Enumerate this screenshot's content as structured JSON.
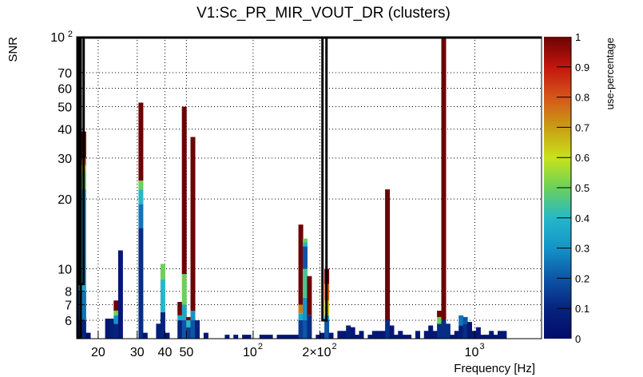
{
  "chart_data": {
    "type": "heatmap",
    "title": "V1:Sc_PR_MIR_VOUT_DR (clusters)",
    "xlabel": "Frequency [Hz]",
    "ylabel": "SNR",
    "zlabel": "use-percentage",
    "x_scale": "log",
    "y_scale": "log",
    "xlim": [
      16,
      2000
    ],
    "ylim": [
      5,
      100
    ],
    "zlim": [
      0,
      1
    ],
    "grid": true,
    "x_ticks": [
      {
        "value": 20,
        "label": "20"
      },
      {
        "value": 30,
        "label": "30"
      },
      {
        "value": 40,
        "label": "40"
      },
      {
        "value": 50,
        "label": "50"
      },
      {
        "value": 100,
        "label": "10",
        "exp": "2"
      },
      {
        "value": 200,
        "label": "2×10",
        "exp": "2"
      },
      {
        "value": 1000,
        "label": "10",
        "exp": "3"
      }
    ],
    "y_ticks": [
      {
        "value": 6,
        "label": "6"
      },
      {
        "value": 7,
        "label": "7"
      },
      {
        "value": 8,
        "label": "8"
      },
      {
        "value": 10,
        "label": "10"
      },
      {
        "value": 20,
        "label": "20"
      },
      {
        "value": 30,
        "label": "30"
      },
      {
        "value": 40,
        "label": "40"
      },
      {
        "value": 50,
        "label": "50"
      },
      {
        "value": 60,
        "label": "60"
      },
      {
        "value": 70,
        "label": "70"
      },
      {
        "value": 100,
        "label": "10",
        "exp": "2"
      }
    ],
    "z_ticks": [
      "0",
      "0.1",
      "0.2",
      "0.3",
      "0.4",
      "0.5",
      "0.6",
      "0.7",
      "0.8",
      "0.9",
      "1"
    ],
    "columns": [
      {
        "f": 16.1,
        "segments": [
          [
            5,
            6,
            0.05
          ],
          [
            6,
            8,
            0.15
          ],
          [
            8,
            10,
            0.3
          ],
          [
            10,
            12,
            0.45
          ],
          [
            12,
            20,
            0.3
          ],
          [
            20,
            32,
            0.25
          ]
        ]
      },
      {
        "f": 16.8,
        "segments": [
          [
            5,
            6,
            0.1
          ],
          [
            6,
            8,
            0.25
          ],
          [
            8,
            22,
            0.35
          ],
          [
            22,
            26,
            0.5
          ],
          [
            26,
            28,
            0.65
          ],
          [
            28,
            30,
            0.8
          ],
          [
            30,
            39,
            1.0
          ]
        ]
      },
      {
        "f": 17.6,
        "segments": [
          [
            5,
            5.3,
            0.02
          ]
        ]
      },
      {
        "f": 21.5,
        "segments": [
          [
            5,
            6.1,
            0.05
          ]
        ]
      },
      {
        "f": 22.5,
        "segments": [
          [
            5,
            6.1,
            0.08
          ]
        ]
      },
      {
        "f": 23.5,
        "segments": [
          [
            5,
            5.8,
            0.1
          ],
          [
            5.8,
            6.3,
            0.3
          ],
          [
            6.3,
            6.6,
            0.5
          ],
          [
            6.6,
            7.3,
            1.0
          ]
        ]
      },
      {
        "f": 24.6,
        "segments": [
          [
            5,
            12,
            0.05
          ]
        ]
      },
      {
        "f": 30.4,
        "segments": [
          [
            5,
            15,
            0.12
          ],
          [
            15,
            19,
            0.25
          ],
          [
            19,
            22,
            0.4
          ],
          [
            22,
            24,
            0.5
          ],
          [
            24,
            52,
            1.0
          ]
        ]
      },
      {
        "f": 31.8,
        "segments": [
          [
            5,
            5.3,
            0.05
          ]
        ]
      },
      {
        "f": 36.5,
        "segments": [
          [
            5,
            5.8,
            0.08
          ]
        ]
      },
      {
        "f": 38.2,
        "segments": [
          [
            5,
            6.5,
            0.1
          ],
          [
            6.5,
            9,
            0.4
          ],
          [
            9,
            10.5,
            0.5
          ]
        ]
      },
      {
        "f": 40.0,
        "segments": [
          [
            5,
            5.3,
            0.05
          ]
        ]
      },
      {
        "f": 45.6,
        "segments": [
          [
            5,
            6,
            0.1
          ],
          [
            6,
            6.3,
            0.35
          ],
          [
            6.3,
            7.2,
            1.0
          ]
        ]
      },
      {
        "f": 47.7,
        "segments": [
          [
            5,
            6,
            0.2
          ],
          [
            6,
            7,
            0.35
          ],
          [
            7,
            9.5,
            0.5
          ],
          [
            9.5,
            50,
            1.0
          ]
        ]
      },
      {
        "f": 49.9,
        "segments": [
          [
            5,
            5.6,
            0.15
          ],
          [
            5.6,
            6,
            0.4
          ],
          [
            6,
            6.2,
            1.0
          ]
        ]
      },
      {
        "f": 52.2,
        "segments": [
          [
            5,
            6,
            0.2
          ],
          [
            6,
            6.6,
            0.3
          ],
          [
            6.6,
            37,
            1.0
          ]
        ]
      },
      {
        "f": 54.6,
        "segments": [
          [
            5,
            6,
            0.1
          ]
        ]
      },
      {
        "f": 59.8,
        "segments": [
          [
            5,
            5.3,
            0.05
          ]
        ]
      },
      {
        "f": 74.5,
        "segments": [
          [
            5,
            5.2,
            0.05
          ]
        ]
      },
      {
        "f": 81.5,
        "segments": [
          [
            5,
            5.2,
            0.05
          ]
        ]
      },
      {
        "f": 89.2,
        "segments": [
          [
            5,
            5.2,
            0.05
          ]
        ]
      },
      {
        "f": 93.3,
        "segments": [
          [
            5,
            5.2,
            0.05
          ]
        ]
      },
      {
        "f": 106.8,
        "segments": [
          [
            5,
            5.2,
            0.05
          ]
        ]
      },
      {
        "f": 111.7,
        "segments": [
          [
            5,
            5.2,
            0.05
          ]
        ]
      },
      {
        "f": 116.8,
        "segments": [
          [
            5,
            5.2,
            0.05
          ]
        ]
      },
      {
        "f": 127.8,
        "segments": [
          [
            5,
            5.2,
            0.05
          ]
        ]
      },
      {
        "f": 133.7,
        "segments": [
          [
            5,
            5.2,
            0.05
          ]
        ]
      },
      {
        "f": 139.8,
        "segments": [
          [
            5,
            5.2,
            0.05
          ]
        ]
      },
      {
        "f": 146.2,
        "segments": [
          [
            5,
            5.2,
            0.05
          ]
        ]
      },
      {
        "f": 153.0,
        "segments": [
          [
            5,
            5.2,
            0.05
          ]
        ]
      },
      {
        "f": 160.0,
        "segments": [
          [
            5,
            6,
            0.15
          ],
          [
            6,
            6.4,
            0.35
          ],
          [
            6.4,
            7,
            0.75
          ],
          [
            7,
            15.5,
            1.0
          ]
        ]
      },
      {
        "f": 167.4,
        "segments": [
          [
            5,
            6,
            0.2
          ],
          [
            6,
            7.5,
            0.3
          ],
          [
            7.5,
            10,
            0.45
          ],
          [
            10,
            12.5,
            0.2
          ],
          [
            12.5,
            13,
            0.4
          ],
          [
            13,
            13.5,
            0.5
          ]
        ]
      },
      {
        "f": 175.1,
        "segments": [
          [
            5,
            6.3,
            0.12
          ],
          [
            6.3,
            9.3,
            1.0
          ]
        ]
      },
      {
        "f": 191.6,
        "segments": [
          [
            5,
            5.2,
            0.05
          ]
        ]
      },
      {
        "f": 200.4,
        "segments": [
          [
            5,
            5.3,
            0.05
          ]
        ]
      },
      {
        "f": 209.6,
        "segments": [
          [
            5,
            6,
            0.2
          ],
          [
            6,
            6.3,
            0.35
          ],
          [
            6.3,
            7.3,
            0.65
          ],
          [
            7.3,
            8.6,
            0.8
          ],
          [
            8.6,
            10,
            1.0
          ]
        ]
      },
      {
        "f": 219.2,
        "segments": [
          [
            5,
            5.3,
            0.05
          ]
        ]
      },
      {
        "f": 239.9,
        "segments": [
          [
            5,
            5.4,
            0.05
          ]
        ]
      },
      {
        "f": 250.9,
        "segments": [
          [
            5,
            5.4,
            0.05
          ]
        ]
      },
      {
        "f": 262.5,
        "segments": [
          [
            5,
            5.7,
            0.08
          ]
        ]
      },
      {
        "f": 274.6,
        "segments": [
          [
            5,
            5.6,
            0.05
          ]
        ]
      },
      {
        "f": 287.2,
        "segments": [
          [
            5,
            5.2,
            0.05
          ]
        ]
      },
      {
        "f": 300.4,
        "segments": [
          [
            5,
            5.4,
            0.05
          ]
        ]
      },
      {
        "f": 328.8,
        "segments": [
          [
            5,
            5.2,
            0.05
          ]
        ]
      },
      {
        "f": 343.9,
        "segments": [
          [
            5,
            5.4,
            0.05
          ]
        ]
      },
      {
        "f": 359.8,
        "segments": [
          [
            5,
            5.4,
            0.05
          ]
        ]
      },
      {
        "f": 376.3,
        "segments": [
          [
            5,
            5.4,
            0.05
          ]
        ]
      },
      {
        "f": 393.6,
        "segments": [
          [
            5,
            6,
            0.12
          ],
          [
            6,
            22,
            1.0
          ]
        ]
      },
      {
        "f": 411.7,
        "segments": [
          [
            5,
            5.7,
            0.05
          ]
        ]
      },
      {
        "f": 430.6,
        "segments": [
          [
            5,
            5.2,
            0.05
          ]
        ]
      },
      {
        "f": 450.4,
        "segments": [
          [
            5,
            5.4,
            0.05
          ]
        ]
      },
      {
        "f": 471.1,
        "segments": [
          [
            5,
            5.2,
            0.05
          ]
        ]
      },
      {
        "f": 492.8,
        "segments": [
          [
            5,
            5.2,
            0.05
          ]
        ]
      },
      {
        "f": 539.1,
        "segments": [
          [
            5,
            5.4,
            0.05
          ]
        ]
      },
      {
        "f": 589.8,
        "segments": [
          [
            5,
            5.4,
            0.05
          ]
        ]
      },
      {
        "f": 617.0,
        "segments": [
          [
            5,
            5.7,
            0.05
          ]
        ]
      },
      {
        "f": 645.3,
        "segments": [
          [
            5,
            5.4,
            0.05
          ]
        ]
      },
      {
        "f": 675.0,
        "segments": [
          [
            5,
            5.8,
            0.12
          ],
          [
            5.8,
            6.2,
            0.5
          ],
          [
            6.2,
            6.6,
            1.0
          ]
        ]
      },
      {
        "f": 706.1,
        "segments": [
          [
            5,
            6,
            0.12
          ],
          [
            6,
            100,
            1.0
          ]
        ]
      },
      {
        "f": 738.6,
        "segments": [
          [
            5,
            5.8,
            0.12
          ]
        ]
      },
      {
        "f": 772.6,
        "segments": [
          [
            5,
            5.2,
            0.05
          ]
        ]
      },
      {
        "f": 808.2,
        "segments": [
          [
            5,
            5.4,
            0.05
          ]
        ]
      },
      {
        "f": 845.3,
        "segments": [
          [
            5,
            5.7,
            0.08
          ],
          [
            5.7,
            6.3,
            0.25
          ]
        ]
      },
      {
        "f": 884.2,
        "segments": [
          [
            5,
            5.8,
            0.12
          ],
          [
            5.8,
            6.2,
            0.2
          ]
        ]
      },
      {
        "f": 924.8,
        "segments": [
          [
            5,
            5.9,
            0.05
          ]
        ]
      },
      {
        "f": 967.4,
        "segments": [
          [
            5,
            5.4,
            0.05
          ]
        ]
      },
      {
        "f": 1011.9,
        "segments": [
          [
            5,
            5.6,
            0.05
          ]
        ]
      },
      {
        "f": 1058.5,
        "segments": [
          [
            5,
            5.2,
            0.05
          ]
        ]
      },
      {
        "f": 1107.2,
        "segments": [
          [
            5,
            5.2,
            0.05
          ]
        ]
      },
      {
        "f": 1158.2,
        "segments": [
          [
            5,
            5.4,
            0.05
          ]
        ]
      },
      {
        "f": 1211.4,
        "segments": [
          [
            5,
            5.2,
            0.05
          ]
        ]
      },
      {
        "f": 1267.2,
        "segments": [
          [
            5,
            5.4,
            0.05
          ]
        ]
      },
      {
        "f": 1325.5,
        "segments": [
          [
            5,
            5.4,
            0.05
          ]
        ]
      }
    ],
    "outlined_columns": [
      {
        "f_range": [
          16.5,
          17.2
        ],
        "snr_range": [
          8.6,
          100
        ]
      },
      {
        "f_range": [
          17.3,
          205
        ],
        "snr_range": [
          100,
          100
        ]
      },
      {
        "f_range": [
          205.5,
          214
        ],
        "snr_range": [
          6,
          100
        ]
      },
      {
        "f_range": [
          214.5,
          2000
        ],
        "snr_range": [
          100,
          100
        ]
      }
    ]
  }
}
